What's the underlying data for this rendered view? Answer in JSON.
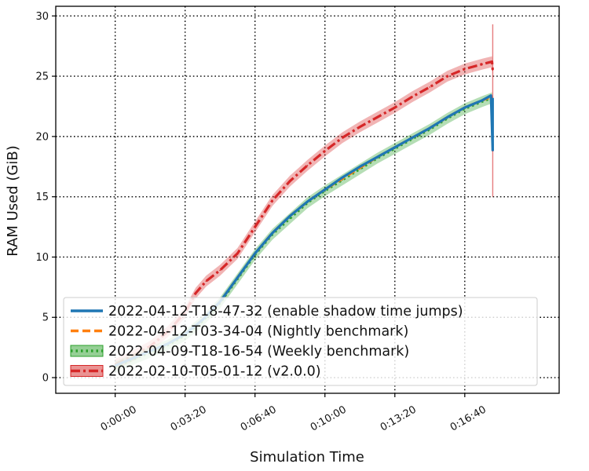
{
  "chart_data": {
    "type": "line",
    "title": "",
    "xlabel": "Simulation Time",
    "ylabel": "RAM Used (GiB)",
    "x_unit": "seconds of simulation time",
    "xlim": [
      -170,
      1270
    ],
    "ylim": [
      -1.3,
      30.8
    ],
    "x_ticks": [
      {
        "value": 0,
        "label": "0:00:00"
      },
      {
        "value": 200,
        "label": "0:03:20"
      },
      {
        "value": 400,
        "label": "0:06:40"
      },
      {
        "value": 600,
        "label": "0:10:00"
      },
      {
        "value": 800,
        "label": "0:13:20"
      },
      {
        "value": 1000,
        "label": "0:16:40"
      }
    ],
    "y_ticks": [
      0,
      5,
      10,
      15,
      20,
      25,
      30
    ],
    "x_tick_rotation_deg": 30,
    "grid": true,
    "grid_style": "dotted",
    "legend_position": "lower left",
    "series": [
      {
        "name": "2022-04-12-T18-47-32 (enable shadow time jumps)",
        "color": "#1f77b4",
        "style": "solid",
        "x": [
          0,
          50,
          100,
          150,
          200,
          250,
          300,
          350,
          400,
          450,
          500,
          550,
          600,
          650,
          700,
          750,
          800,
          850,
          900,
          950,
          1000,
          1050,
          1075,
          1080
        ],
        "y": [
          1.0,
          1.6,
          2.2,
          2.8,
          3.6,
          4.8,
          6.3,
          8.3,
          10.3,
          12.0,
          13.4,
          14.6,
          15.6,
          16.6,
          17.5,
          18.3,
          19.1,
          19.9,
          20.7,
          21.6,
          22.4,
          23.0,
          23.4,
          18.8
        ]
      },
      {
        "name": "2022-04-12-T03-34-04 (Nightly benchmark)",
        "color": "#ff7f0e",
        "style": "dashed",
        "x": [
          0,
          50,
          100,
          150,
          200,
          250,
          300,
          350,
          400,
          450,
          500,
          550,
          600,
          650,
          700,
          750,
          800,
          850,
          900,
          950,
          1000,
          1050,
          1078
        ],
        "y": [
          1.0,
          1.6,
          2.2,
          2.8,
          3.6,
          4.8,
          6.3,
          8.3,
          10.3,
          12.0,
          13.4,
          14.6,
          15.6,
          16.5,
          17.4,
          18.3,
          19.1,
          19.9,
          20.7,
          21.6,
          22.4,
          23.0,
          23.3
        ]
      },
      {
        "name": "2022-04-09-T18-16-54 (Weekly benchmark)",
        "color": "#2ca02c",
        "style": "dotted",
        "band": true,
        "x": [
          0,
          50,
          100,
          150,
          200,
          250,
          300,
          350,
          400,
          450,
          500,
          550,
          600,
          650,
          700,
          750,
          800,
          850,
          900,
          950,
          1000,
          1050,
          1078
        ],
        "y": [
          0.9,
          1.5,
          2.1,
          2.7,
          3.5,
          4.7,
          6.2,
          8.2,
          10.2,
          11.9,
          13.2,
          14.5,
          15.5,
          16.4,
          17.3,
          18.2,
          19.0,
          19.8,
          20.6,
          21.5,
          22.3,
          22.9,
          23.2
        ]
      },
      {
        "name": "2022-02-10-T05-01-12 (v2.0.0)",
        "color": "#d62728",
        "style": "dashdot",
        "band": true,
        "x": [
          0,
          50,
          100,
          150,
          200,
          230,
          260,
          300,
          350,
          400,
          450,
          500,
          550,
          600,
          650,
          700,
          750,
          800,
          850,
          900,
          950,
          1000,
          1050,
          1078,
          1080
        ],
        "y": [
          1.1,
          1.8,
          2.6,
          3.8,
          5.4,
          7.0,
          8.0,
          8.9,
          10.3,
          12.5,
          14.7,
          16.3,
          17.6,
          18.8,
          19.9,
          20.8,
          21.6,
          22.4,
          23.3,
          24.1,
          25.0,
          25.6,
          26.0,
          26.2,
          25.5
        ]
      }
    ]
  }
}
